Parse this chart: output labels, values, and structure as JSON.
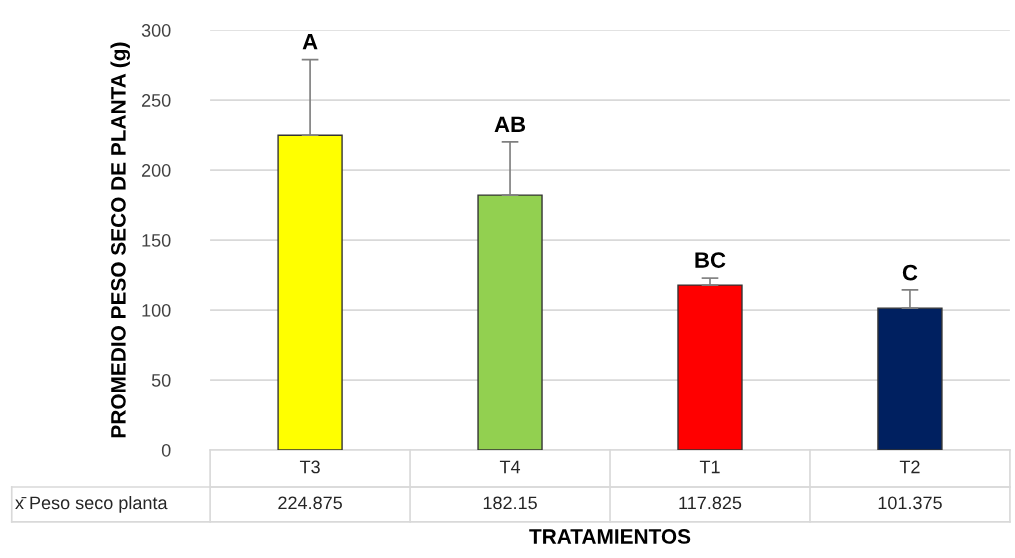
{
  "chart_data": {
    "type": "bar",
    "xlabel": "TRATAMIENTOS",
    "ylabel": "PROMEDIO PESO SECO DE PLANTA (g)",
    "categories": [
      "T3",
      "T4",
      "T1",
      "T2"
    ],
    "series": [
      {
        "name": "x̄ Peso seco planta",
        "colors": [
          "#ffff00",
          "#92d050",
          "#ff0000",
          "#002060"
        ],
        "values": [
          224.875,
          182.15,
          117.825,
          101.375
        ],
        "errors": [
          54,
          38,
          5,
          13
        ]
      }
    ],
    "data_labels": true,
    "annotations": [
      {
        "text": "A",
        "x": "T3",
        "y": 279
      },
      {
        "text": "AB",
        "x": "T4",
        "y": 220
      },
      {
        "text": "BC",
        "x": "T1",
        "y": 123
      },
      {
        "text": "C",
        "x": "T2",
        "y": 114
      }
    ],
    "ylim": [
      0,
      300
    ],
    "yticks": [
      0,
      50,
      100,
      150,
      200,
      250,
      300
    ],
    "grid": "y",
    "legend": false
  }
}
